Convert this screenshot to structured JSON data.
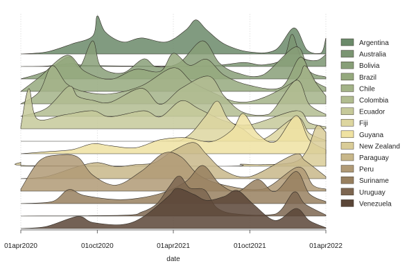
{
  "chart_data": {
    "type": "area",
    "subtype": "ridgeline",
    "title": "",
    "xlabel": "date",
    "ylabel": "",
    "x_ticks": [
      "01apr2020",
      "01oct2020",
      "01apr2021",
      "01oct2021",
      "01apr2022"
    ],
    "x_range": [
      "2020-04-01",
      "2022-04-01"
    ],
    "grid": "vertical dotted",
    "legend": "right",
    "series": [
      {
        "name": "Argentina",
        "color": "#6b8a6a",
        "points": [
          [
            "2020-04-01",
            0
          ],
          [
            "2020-06-01",
            0.05
          ],
          [
            "2020-08-01",
            0.25
          ],
          [
            "2020-09-20",
            0.45
          ],
          [
            "2020-10-01",
            0.95
          ],
          [
            "2020-10-20",
            0.55
          ],
          [
            "2020-12-01",
            0.3
          ],
          [
            "2021-01-15",
            0.4
          ],
          [
            "2021-03-15",
            0.3
          ],
          [
            "2021-05-01",
            0.6
          ],
          [
            "2021-05-25",
            0.85
          ],
          [
            "2021-06-20",
            0.6
          ],
          [
            "2021-08-01",
            0.25
          ],
          [
            "2021-10-01",
            0.05
          ],
          [
            "2021-12-01",
            0.1
          ],
          [
            "2022-01-15",
            0.65
          ],
          [
            "2022-02-15",
            0.1
          ],
          [
            "2022-03-20",
            0.02
          ],
          [
            "2022-04-01",
            0.4
          ]
        ]
      },
      {
        "name": "Australia",
        "color": "#7b9572",
        "points": [
          [
            "2020-04-01",
            0
          ],
          [
            "2020-06-01",
            0.01
          ],
          [
            "2020-08-01",
            0.08
          ],
          [
            "2020-09-01",
            0.03
          ],
          [
            "2021-01-01",
            0.01
          ],
          [
            "2021-07-01",
            0.02
          ],
          [
            "2021-09-15",
            0.1
          ],
          [
            "2021-11-01",
            0.04
          ],
          [
            "2021-12-20",
            0.2
          ],
          [
            "2022-01-10",
            0.8
          ],
          [
            "2022-02-01",
            0.25
          ],
          [
            "2022-03-10",
            0.15
          ],
          [
            "2022-04-01",
            0.3
          ]
        ]
      },
      {
        "name": "Bolivia",
        "color": "#889f78",
        "points": [
          [
            "2020-04-01",
            0
          ],
          [
            "2020-06-01",
            0.2
          ],
          [
            "2020-07-25",
            0.55
          ],
          [
            "2020-08-20",
            0.3
          ],
          [
            "2020-09-20",
            0.95
          ],
          [
            "2020-10-10",
            0.3
          ],
          [
            "2020-12-01",
            0.15
          ],
          [
            "2021-01-20",
            0.5
          ],
          [
            "2021-02-20",
            0.3
          ],
          [
            "2021-04-15",
            0.4
          ],
          [
            "2021-06-10",
            0.95
          ],
          [
            "2021-07-20",
            0.4
          ],
          [
            "2021-09-01",
            0.15
          ],
          [
            "2021-11-01",
            0.1
          ],
          [
            "2022-01-20",
            0.8
          ],
          [
            "2022-02-20",
            0.2
          ],
          [
            "2022-04-01",
            0.05
          ]
        ]
      },
      {
        "name": "Brazil",
        "color": "#95a97e",
        "points": [
          [
            "2020-04-01",
            0
          ],
          [
            "2020-05-15",
            0.35
          ],
          [
            "2020-07-20",
            0.9
          ],
          [
            "2020-09-01",
            0.5
          ],
          [
            "2020-11-01",
            0.3
          ],
          [
            "2021-01-01",
            0.55
          ],
          [
            "2021-03-01",
            0.5
          ],
          [
            "2021-04-01",
            0.95
          ],
          [
            "2021-05-10",
            0.65
          ],
          [
            "2021-06-20",
            0.8
          ],
          [
            "2021-08-01",
            0.4
          ],
          [
            "2021-10-01",
            0.15
          ],
          [
            "2021-12-15",
            0.1
          ],
          [
            "2022-01-30",
            0.85
          ],
          [
            "2022-03-01",
            0.3
          ],
          [
            "2022-04-01",
            0.1
          ]
        ]
      },
      {
        "name": "Chile",
        "color": "#a3b388",
        "points": [
          [
            "2020-04-01",
            0
          ],
          [
            "2020-05-15",
            0.3
          ],
          [
            "2020-06-15",
            0.95
          ],
          [
            "2020-07-20",
            0.5
          ],
          [
            "2020-09-01",
            0.3
          ],
          [
            "2020-11-01",
            0.25
          ],
          [
            "2021-01-15",
            0.45
          ],
          [
            "2021-04-01",
            0.9
          ],
          [
            "2021-05-15",
            0.55
          ],
          [
            "2021-07-01",
            0.3
          ],
          [
            "2021-09-01",
            0.05
          ],
          [
            "2021-11-01",
            0.15
          ],
          [
            "2022-01-20",
            0.6
          ],
          [
            "2022-02-10",
            0.95
          ],
          [
            "2022-03-10",
            0.5
          ],
          [
            "2022-04-01",
            0.2
          ]
        ]
      },
      {
        "name": "Colombia",
        "color": "#b1bc90",
        "points": [
          [
            "2020-04-01",
            0
          ],
          [
            "2020-06-01",
            0.2
          ],
          [
            "2020-07-25",
            0.75
          ],
          [
            "2020-08-15",
            0.5
          ],
          [
            "2020-09-20",
            0.4
          ],
          [
            "2020-11-01",
            0.35
          ],
          [
            "2021-01-15",
            0.7
          ],
          [
            "2021-03-01",
            0.3
          ],
          [
            "2021-04-20",
            0.7
          ],
          [
            "2021-06-25",
            1.0
          ],
          [
            "2021-08-01",
            0.5
          ],
          [
            "2021-09-15",
            0.1
          ],
          [
            "2021-11-15",
            0.05
          ],
          [
            "2022-01-20",
            0.9
          ],
          [
            "2022-02-20",
            0.3
          ],
          [
            "2022-04-01",
            0.05
          ]
        ]
      },
      {
        "name": "Ecuador",
        "color": "#c6c99a",
        "points": [
          [
            "2020-04-01",
            0.05
          ],
          [
            "2020-04-20",
            1.0
          ],
          [
            "2020-05-10",
            0.25
          ],
          [
            "2020-07-15",
            0.35
          ],
          [
            "2020-09-20",
            0.45
          ],
          [
            "2020-11-01",
            0.3
          ],
          [
            "2021-01-20",
            0.45
          ],
          [
            "2021-03-01",
            0.3
          ],
          [
            "2021-04-20",
            0.7
          ],
          [
            "2021-06-01",
            0.5
          ],
          [
            "2021-08-01",
            0.2
          ],
          [
            "2021-10-01",
            0.1
          ],
          [
            "2022-01-20",
            0.45
          ],
          [
            "2022-02-20",
            0.15
          ],
          [
            "2022-04-01",
            0.05
          ]
        ]
      },
      {
        "name": "Fiji",
        "color": "#ddd6a0",
        "points": [
          [
            "2020-04-01",
            0
          ],
          [
            "2021-03-01",
            0
          ],
          [
            "2021-05-01",
            0.1
          ],
          [
            "2021-06-15",
            0.6
          ],
          [
            "2021-07-15",
            1.0
          ],
          [
            "2021-08-10",
            0.55
          ],
          [
            "2021-09-15",
            0.3
          ],
          [
            "2021-11-01",
            0.05
          ],
          [
            "2022-01-20",
            0.6
          ],
          [
            "2022-02-20",
            0.2
          ],
          [
            "2022-04-01",
            0.02
          ]
        ]
      },
      {
        "name": "Guyana",
        "color": "#efe2a2",
        "points": [
          [
            "2020-04-01",
            0
          ],
          [
            "2020-06-01",
            0.05
          ],
          [
            "2020-08-01",
            0.1
          ],
          [
            "2020-09-20",
            0.25
          ],
          [
            "2020-11-01",
            0.2
          ],
          [
            "2021-01-01",
            0.15
          ],
          [
            "2021-03-01",
            0.35
          ],
          [
            "2021-05-01",
            0.4
          ],
          [
            "2021-07-01",
            0.3
          ],
          [
            "2021-08-20",
            0.6
          ],
          [
            "2021-09-15",
            1.0
          ],
          [
            "2021-10-20",
            0.5
          ],
          [
            "2021-12-01",
            0.3
          ],
          [
            "2022-01-20",
            0.95
          ],
          [
            "2022-02-20",
            0.35
          ],
          [
            "2022-04-01",
            0.1
          ]
        ]
      },
      {
        "name": "New Zealand",
        "color": "#d9cc98",
        "points": [
          [
            "2020-04-01",
            0.1
          ],
          [
            "2020-05-01",
            0.01
          ],
          [
            "2021-08-01",
            0
          ],
          [
            "2021-09-10",
            0.05
          ],
          [
            "2021-11-01",
            0.04
          ],
          [
            "2022-01-15",
            0.1
          ],
          [
            "2022-02-15",
            0.4
          ],
          [
            "2022-03-10",
            1.0
          ],
          [
            "2022-04-01",
            0.85
          ]
        ]
      },
      {
        "name": "Paraguay",
        "color": "#c8b78a",
        "points": [
          [
            "2020-04-01",
            0
          ],
          [
            "2020-06-01",
            0.05
          ],
          [
            "2020-08-15",
            0.3
          ],
          [
            "2020-10-01",
            0.4
          ],
          [
            "2020-11-15",
            0.3
          ],
          [
            "2021-01-01",
            0.35
          ],
          [
            "2021-02-15",
            0.4
          ],
          [
            "2021-04-01",
            0.7
          ],
          [
            "2021-05-20",
            0.9
          ],
          [
            "2021-06-20",
            0.6
          ],
          [
            "2021-08-01",
            0.2
          ],
          [
            "2021-10-01",
            0.05
          ],
          [
            "2022-01-15",
            0.6
          ],
          [
            "2022-02-10",
            0.45
          ],
          [
            "2022-04-01",
            0.05
          ]
        ]
      },
      {
        "name": "Peru",
        "color": "#b09a76",
        "points": [
          [
            "2020-04-01",
            0.05
          ],
          [
            "2020-05-15",
            0.75
          ],
          [
            "2020-06-30",
            0.9
          ],
          [
            "2020-08-15",
            0.85
          ],
          [
            "2020-09-20",
            0.4
          ],
          [
            "2020-11-15",
            0.15
          ],
          [
            "2021-01-15",
            0.5
          ],
          [
            "2021-03-10",
            0.95
          ],
          [
            "2021-04-20",
            0.85
          ],
          [
            "2021-06-01",
            0.4
          ],
          [
            "2021-08-01",
            0.15
          ],
          [
            "2021-11-01",
            0.05
          ],
          [
            "2022-01-25",
            0.6
          ],
          [
            "2022-03-01",
            0.15
          ],
          [
            "2022-04-01",
            0.05
          ]
        ]
      },
      {
        "name": "Suriname",
        "color": "#98805f",
        "points": [
          [
            "2020-04-01",
            0
          ],
          [
            "2020-06-15",
            0.05
          ],
          [
            "2020-07-25",
            0.35
          ],
          [
            "2020-09-01",
            0.2
          ],
          [
            "2020-12-01",
            0.1
          ],
          [
            "2021-03-01",
            0.25
          ],
          [
            "2021-05-01",
            0.55
          ],
          [
            "2021-06-10",
            0.95
          ],
          [
            "2021-07-20",
            0.5
          ],
          [
            "2021-09-01",
            0.3
          ],
          [
            "2021-10-20",
            0.6
          ],
          [
            "2021-11-30",
            0.3
          ],
          [
            "2022-01-20",
            0.8
          ],
          [
            "2022-02-20",
            0.25
          ],
          [
            "2022-04-01",
            0.05
          ]
        ]
      },
      {
        "name": "Uruguay",
        "color": "#7d6650",
        "points": [
          [
            "2020-04-01",
            0
          ],
          [
            "2020-12-01",
            0.02
          ],
          [
            "2021-01-15",
            0.1
          ],
          [
            "2021-02-20",
            0.3
          ],
          [
            "2021-03-20",
            0.7
          ],
          [
            "2021-04-15",
            1.0
          ],
          [
            "2021-05-10",
            0.7
          ],
          [
            "2021-06-15",
            0.65
          ],
          [
            "2021-07-15",
            0.2
          ],
          [
            "2021-09-01",
            0.05
          ],
          [
            "2021-12-01",
            0.05
          ],
          [
            "2022-01-15",
            0.6
          ],
          [
            "2022-02-10",
            0.3
          ],
          [
            "2022-04-01",
            0.03
          ]
        ]
      },
      {
        "name": "Venezuela",
        "color": "#5a4537",
        "points": [
          [
            "2020-04-01",
            0
          ],
          [
            "2020-06-01",
            0.05
          ],
          [
            "2020-08-15",
            0.3
          ],
          [
            "2020-09-20",
            0.15
          ],
          [
            "2020-12-01",
            0.1
          ],
          [
            "2021-01-20",
            0.3
          ],
          [
            "2021-03-20",
            0.8
          ],
          [
            "2021-04-10",
            1.0
          ],
          [
            "2021-05-20",
            0.85
          ],
          [
            "2021-06-20",
            0.7
          ],
          [
            "2021-08-01",
            0.8
          ],
          [
            "2021-09-01",
            0.95
          ],
          [
            "2021-10-10",
            0.6
          ],
          [
            "2021-12-01",
            0.2
          ],
          [
            "2022-01-20",
            0.5
          ],
          [
            "2022-02-20",
            0.2
          ],
          [
            "2022-04-01",
            0.02
          ]
        ]
      }
    ]
  }
}
